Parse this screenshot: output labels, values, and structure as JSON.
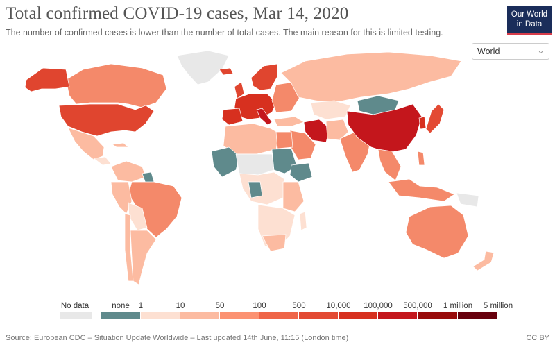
{
  "header": {
    "title": "Total confirmed COVID-19 cases, Mar 14, 2020",
    "subtitle": "The number of confirmed cases is lower than the number of total cases. The main reason for this is limited testing.",
    "logo_line1": "Our World",
    "logo_line2": "in Data"
  },
  "region_select": {
    "value": "World"
  },
  "legend": {
    "no_data": {
      "label": "No data",
      "color": "#e8e8e8"
    },
    "none": {
      "label": "none",
      "color": "#5f8a8c"
    },
    "ticks": [
      "1",
      "10",
      "50",
      "100",
      "500",
      "10,000",
      "100,000",
      "500,000",
      "1 million",
      "5 million"
    ],
    "colors": [
      "#fde0d2",
      "#fcbba1",
      "#fc9272",
      "#ef6548",
      "#e34a33",
      "#d7301f",
      "#c4161c",
      "#990b0b",
      "#67000d"
    ]
  },
  "footer": {
    "source": "Source: European CDC – Situation Update Worldwide – Last updated 14th June, 11:15 (London time)",
    "license": "CC BY"
  }
}
